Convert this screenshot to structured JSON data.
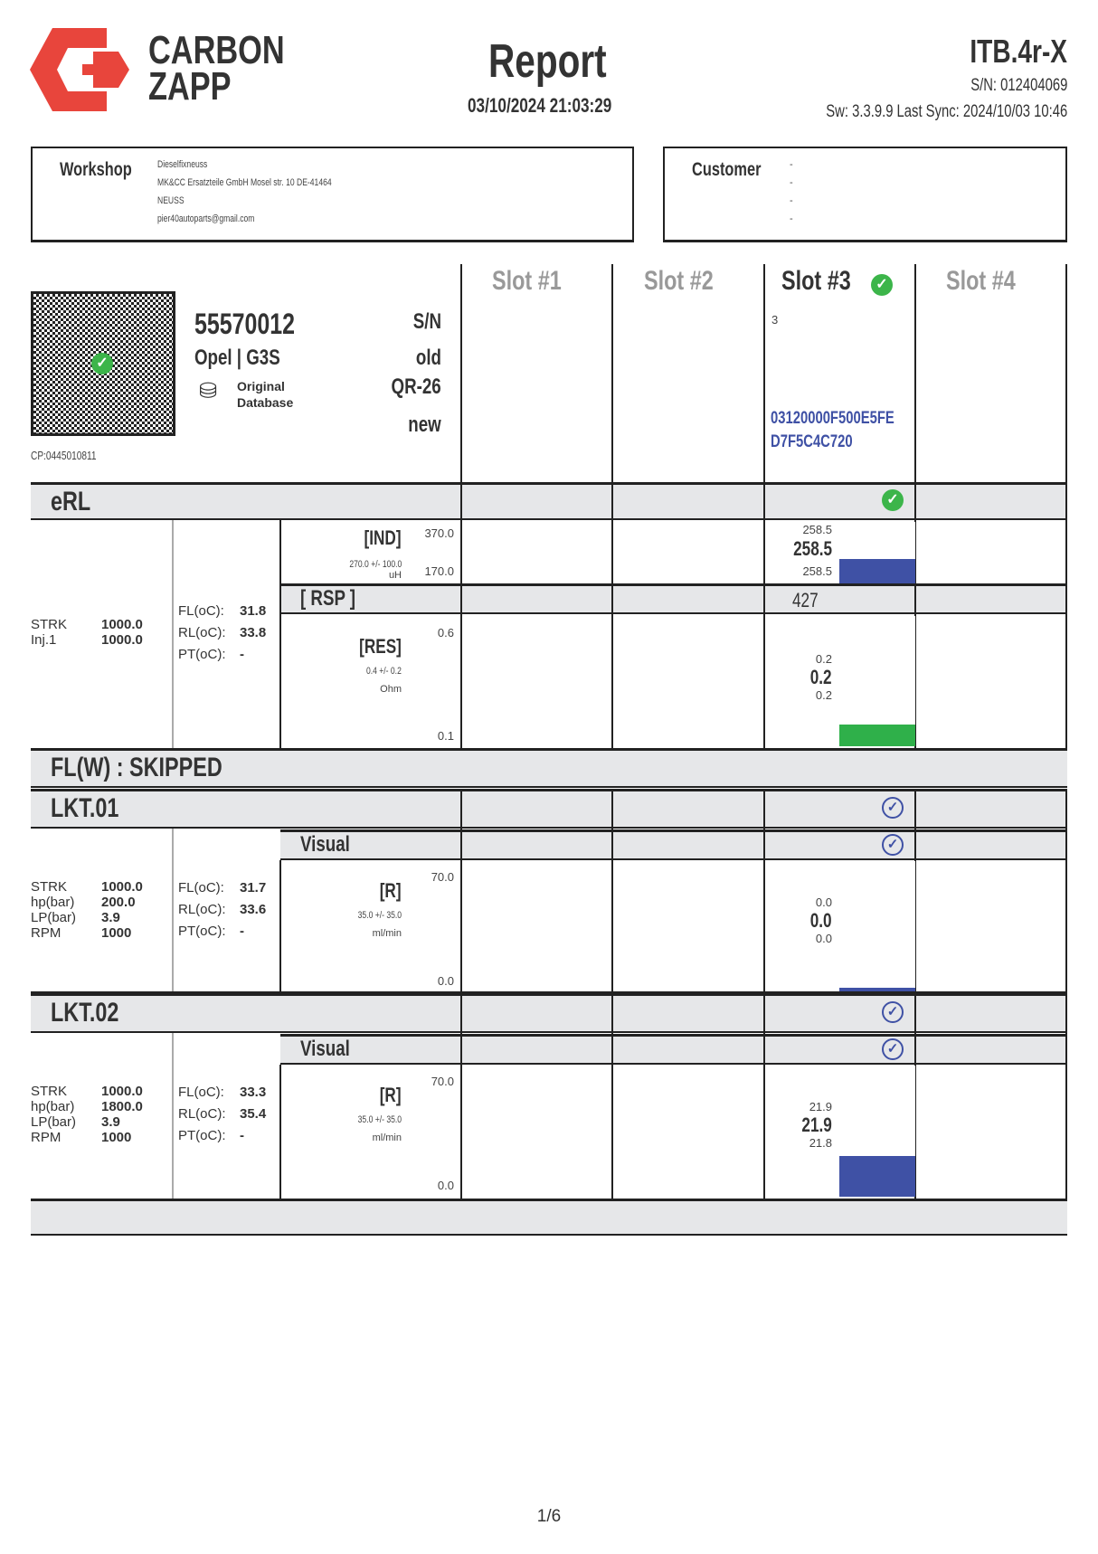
{
  "header": {
    "brand_line1": "CARBON",
    "brand_line2": "ZAPP",
    "title": "Report",
    "datetime": "03/10/2024 21:03:29",
    "device": "ITB.4r-X",
    "serial": "S/N: 012404069",
    "sw": "Sw: 3.3.9.9 Last Sync: 2024/10/03 10:46",
    "logo_color": "#e8453c"
  },
  "workshop": {
    "label": "Workshop",
    "lines": [
      "Dieselfixneuss",
      "MK&CC Ersatzteile GmbH Mosel str. 10 DE-41464",
      "NEUSS",
      "pier40autoparts@gmail.com"
    ]
  },
  "customer": {
    "label": "Customer",
    "lines": [
      "-",
      "-",
      "-",
      "-"
    ]
  },
  "injector": {
    "part": "55570012",
    "brand": "Opel | G3S",
    "db_line1": "Original",
    "db_line2": "Database",
    "cp": "CP:0445010811",
    "labels": [
      "S/N",
      "old",
      "QR-26",
      "new"
    ]
  },
  "slots": [
    {
      "label": "Slot #1",
      "active": false
    },
    {
      "label": "Slot #2",
      "active": false
    },
    {
      "label": "Slot #3",
      "active": true,
      "sn": "3",
      "code1": "03120000F500E5FE",
      "code2": "D7F5C4C720"
    },
    {
      "label": "Slot #4",
      "active": false
    }
  ],
  "erl": {
    "title": "eRL",
    "cond": [
      {
        "k": "STRK",
        "v": "1000.0"
      },
      {
        "k": "Inj.1",
        "v": "1000.0"
      }
    ],
    "temps": [
      {
        "k": "FL(oC):",
        "v": "31.8"
      },
      {
        "k": "RL(oC):",
        "v": "33.8"
      },
      {
        "k": "PT(oC):",
        "v": "-"
      }
    ],
    "ind": {
      "label": "[IND]",
      "spec": "270.0 +/- 100.0",
      "unit": "uH",
      "max": "370.0",
      "min": "170.0",
      "hi": "258.5",
      "val": "258.5",
      "lo": "258.5",
      "fill": 0.4,
      "color": "#3f51a5"
    },
    "rsp": {
      "label": "[ RSP ]",
      "val": "427"
    },
    "res": {
      "label": "[RES]",
      "spec": "0.4 +/- 0.2",
      "unit": "Ohm",
      "max": "0.6",
      "min": "0.1",
      "hi": "0.2",
      "val": "0.2",
      "lo": "0.2",
      "fill": 0.17,
      "color": "#2fb04a"
    }
  },
  "flw": {
    "title": "FL(W) : SKIPPED"
  },
  "lkt": [
    {
      "title": "LKT.01",
      "visual": "Visual",
      "cond": [
        {
          "k": "STRK",
          "v": "1000.0"
        },
        {
          "k": "hp(bar)",
          "v": "200.0"
        },
        {
          "k": "LP(bar)",
          "v": "3.9"
        },
        {
          "k": "RPM",
          "v": "1000"
        }
      ],
      "temps": [
        {
          "k": "FL(oC):",
          "v": "31.7"
        },
        {
          "k": "RL(oC):",
          "v": "33.6"
        },
        {
          "k": "PT(oC):",
          "v": "-"
        }
      ],
      "r": {
        "label": "[R]",
        "spec": "35.0 +/- 35.0",
        "unit": "ml/min",
        "max": "70.0",
        "min": "0.0",
        "hi": "0.0",
        "val": "0.0",
        "lo": "0.0",
        "fill": 0.03,
        "color": "#3f51a5"
      }
    },
    {
      "title": "LKT.02",
      "visual": "Visual",
      "cond": [
        {
          "k": "STRK",
          "v": "1000.0"
        },
        {
          "k": "hp(bar)",
          "v": "1800.0"
        },
        {
          "k": "LP(bar)",
          "v": "3.9"
        },
        {
          "k": "RPM",
          "v": "1000"
        }
      ],
      "temps": [
        {
          "k": "FL(oC):",
          "v": "33.3"
        },
        {
          "k": "RL(oC):",
          "v": "35.4"
        },
        {
          "k": "PT(oC):",
          "v": "-"
        }
      ],
      "r": {
        "label": "[R]",
        "spec": "35.0 +/- 35.0",
        "unit": "ml/min",
        "max": "70.0",
        "min": "0.0",
        "hi": "21.9",
        "val": "21.9",
        "lo": "21.8",
        "fill": 0.31,
        "color": "#3f51a5"
      }
    }
  ],
  "footer": {
    "page": "1/6"
  }
}
